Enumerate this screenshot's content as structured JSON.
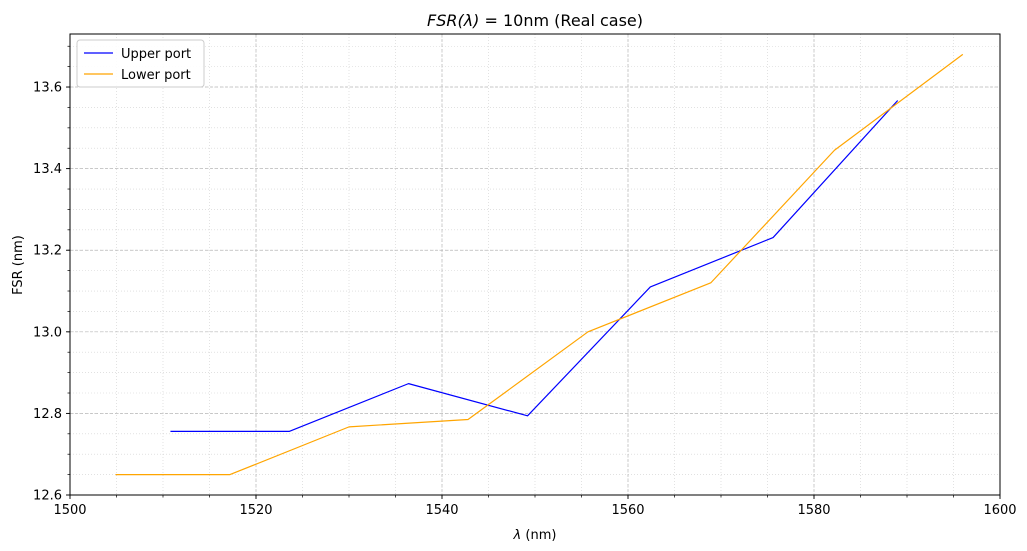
{
  "chart_data": {
    "type": "line",
    "title_main": "FSR(λ)",
    "title_rest": " = 10nm (Real case)",
    "xlabel_symbol": "λ",
    "xlabel_unit": " (nm)",
    "ylabel": "FSR (nm)",
    "xlim": [
      1500,
      1600
    ],
    "ylim": [
      12.6,
      13.73
    ],
    "xticks": [
      1500,
      1520,
      1540,
      1560,
      1580,
      1600
    ],
    "xtick_labels": [
      "1500",
      "1520",
      "1540",
      "1560",
      "1580",
      "1600"
    ],
    "yticks": [
      12.6,
      12.8,
      13.0,
      13.2,
      13.4,
      13.6
    ],
    "ytick_labels": [
      "12.6",
      "12.8",
      "13.0",
      "13.2",
      "13.4",
      "13.6"
    ],
    "grid": true,
    "minor_grid": true,
    "legend_position": "top-left",
    "series": [
      {
        "name": "Upper port",
        "color": "#0000ff",
        "x": [
          1510.8,
          1523.6,
          1536.4,
          1549.2,
          1562.4,
          1575.6,
          1589.0
        ],
        "y": [
          12.756,
          12.756,
          12.873,
          12.794,
          13.11,
          13.231,
          13.567
        ]
      },
      {
        "name": "Lower port",
        "color": "#ffa500",
        "x": [
          1504.9,
          1517.2,
          1530.0,
          1542.8,
          1555.7,
          1568.9,
          1582.2,
          1596.0
        ],
        "y": [
          12.65,
          12.65,
          12.767,
          12.785,
          13.0,
          13.12,
          13.445,
          13.68
        ]
      }
    ]
  }
}
